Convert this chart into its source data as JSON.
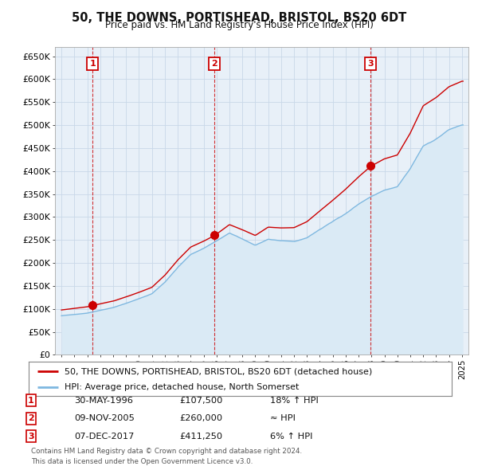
{
  "title": "50, THE DOWNS, PORTISHEAD, BRISTOL, BS20 6DT",
  "subtitle": "Price paid vs. HM Land Registry's House Price Index (HPI)",
  "legend_line1": "50, THE DOWNS, PORTISHEAD, BRISTOL, BS20 6DT (detached house)",
  "legend_line2": "HPI: Average price, detached house, North Somerset",
  "transactions": [
    {
      "num": 1,
      "date": "30-MAY-1996",
      "price": 107500,
      "x": 1996.41,
      "rel": "18% ↑ HPI"
    },
    {
      "num": 2,
      "date": "09-NOV-2005",
      "price": 260000,
      "x": 2005.86,
      "rel": "≈ HPI"
    },
    {
      "num": 3,
      "date": "07-DEC-2017",
      "price": 411250,
      "x": 2017.93,
      "rel": "6% ↑ HPI"
    }
  ],
  "note_line1": "Contains HM Land Registry data © Crown copyright and database right 2024.",
  "note_line2": "This data is licensed under the Open Government Licence v3.0.",
  "price_color": "#cc0000",
  "hpi_color": "#7eb8e0",
  "hpi_fill_color": "#daeaf5",
  "ylim": [
    0,
    670000
  ],
  "xlim_start": 1993.5,
  "xlim_end": 2025.5,
  "background_color": "#ffffff",
  "grid_color": "#c8d8e8",
  "hpi_anchors": {
    "1994": 85000,
    "1995": 88000,
    "1996": 91000,
    "1997": 97000,
    "1998": 103000,
    "1999": 112000,
    "2000": 122000,
    "2001": 133000,
    "2002": 158000,
    "2003": 190000,
    "2004": 218000,
    "2005": 232000,
    "2006": 248000,
    "2007": 265000,
    "2008": 252000,
    "2009": 238000,
    "2010": 252000,
    "2011": 248000,
    "2012": 246000,
    "2013": 255000,
    "2014": 273000,
    "2015": 290000,
    "2016": 308000,
    "2017": 328000,
    "2018": 345000,
    "2019": 358000,
    "2020": 365000,
    "2021": 405000,
    "2022": 455000,
    "2023": 470000,
    "2024": 490000,
    "2025": 500000
  }
}
